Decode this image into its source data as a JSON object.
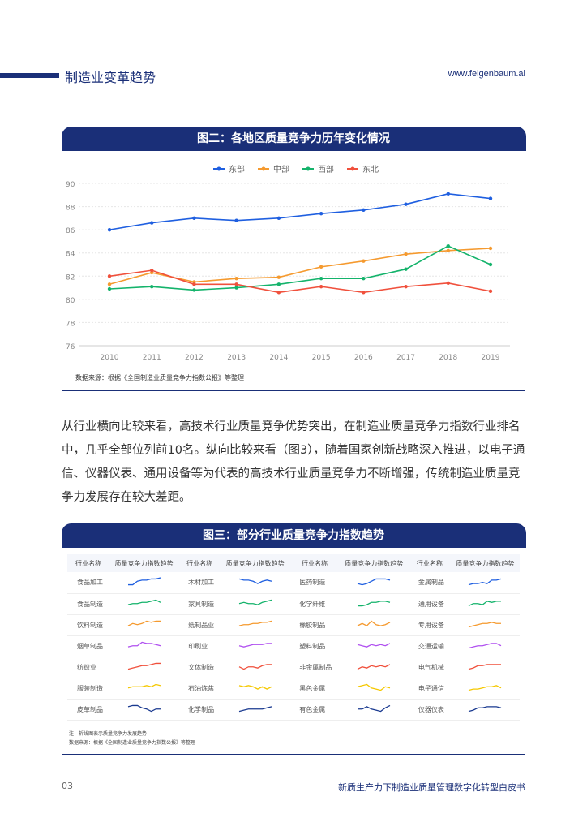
{
  "header": {
    "title": "制造业变革趋势",
    "url": "www.feigenbaum.ai"
  },
  "figure2": {
    "title": "图二：各地区质量竞争力历年变化情况",
    "source": "数据来源：根据《全国制造业质量竞争力指数公报》等整理"
  },
  "chart_data": {
    "type": "line",
    "title": "图二：各地区质量竞争力历年变化情况",
    "x": [
      "2010",
      "2011",
      "2012",
      "2013",
      "2014",
      "2015",
      "2016",
      "2017",
      "2018",
      "2019"
    ],
    "yticks": [
      "76",
      "78",
      "80",
      "82",
      "84",
      "86",
      "88",
      "90"
    ],
    "ylim": [
      76,
      90
    ],
    "grid": true,
    "legend": "top",
    "series": [
      {
        "name": "东部",
        "color": "#1f5fe0",
        "values": [
          86.0,
          86.6,
          87.0,
          86.8,
          87.0,
          87.4,
          87.7,
          88.2,
          89.1,
          88.7
        ]
      },
      {
        "name": "中部",
        "color": "#f59a2f",
        "values": [
          81.3,
          82.3,
          81.5,
          81.8,
          81.9,
          82.8,
          83.3,
          83.9,
          84.2,
          84.4
        ]
      },
      {
        "name": "西部",
        "color": "#14b36b",
        "values": [
          80.9,
          81.1,
          80.8,
          81.0,
          81.3,
          81.8,
          81.8,
          82.6,
          84.6,
          83.0
        ]
      },
      {
        "name": "东北",
        "color": "#f0503c",
        "values": [
          82.0,
          82.5,
          81.3,
          81.3,
          80.6,
          81.1,
          80.6,
          81.1,
          81.4,
          80.7
        ]
      }
    ]
  },
  "paragraph": "从行业横向比较来看，高技术行业质量竞争优势突出，在制造业质量竞争力指数行业排名中，几乎全部位列前10名。纵向比较来看（图3），随着国家创新战略深入推进，以电子通信、仪器仪表、通用设备等为代表的高技术行业质量竞争力不断增强，传统制造业质量竞争力发展存在较大差距。",
  "figure3": {
    "title": "图三：部分行业质量竞争力指数趋势",
    "col_name": "行业名称",
    "col_trend": "质量竞争力指数趋势",
    "row_colors": [
      "#1f5fe0",
      "#14b36b",
      "#f59a2f",
      "#b050f0",
      "#f0503c",
      "#f5c800",
      "#1a3a90"
    ],
    "columns": [
      [
        {
          "name": "食品加工",
          "trend": [
            1,
            1,
            4,
            5,
            5,
            6,
            6,
            7
          ]
        },
        {
          "name": "食品制造",
          "trend": [
            2,
            3,
            3,
            4,
            4,
            5,
            6,
            4
          ]
        },
        {
          "name": "饮料制造",
          "trend": [
            2,
            4,
            3,
            4,
            6,
            5,
            6,
            6
          ]
        },
        {
          "name": "烟草制品",
          "trend": [
            2,
            3,
            3,
            6,
            5,
            5,
            4,
            3
          ]
        },
        {
          "name": "纺织业",
          "trend": [
            1,
            2,
            3,
            4,
            4,
            5,
            6,
            6
          ]
        },
        {
          "name": "服装制造",
          "trend": [
            3,
            4,
            4,
            4,
            5,
            4,
            6,
            5
          ]
        },
        {
          "name": "皮革制品",
          "trend": [
            5,
            6,
            6,
            4,
            3,
            1,
            3,
            3
          ]
        }
      ],
      [
        {
          "name": "木材加工",
          "trend": [
            6,
            5,
            5,
            4,
            2,
            4,
            5,
            4
          ]
        },
        {
          "name": "家具制造",
          "trend": [
            3,
            4,
            3,
            3,
            2,
            4,
            5,
            6
          ]
        },
        {
          "name": "纸制品业",
          "trend": [
            2,
            3,
            3,
            4,
            4,
            5,
            5,
            6
          ]
        },
        {
          "name": "印刷业",
          "trend": [
            3,
            2,
            3,
            4,
            4,
            4,
            5,
            5
          ]
        },
        {
          "name": "文体制造",
          "trend": [
            3,
            1,
            3,
            3,
            2,
            4,
            5,
            5
          ]
        },
        {
          "name": "石油炼焦",
          "trend": [
            5,
            4,
            5,
            4,
            2,
            4,
            2,
            4
          ]
        },
        {
          "name": "化学制品",
          "trend": [
            1,
            2,
            3,
            3,
            3,
            3,
            4,
            5
          ]
        }
      ],
      [
        {
          "name": "医药制造",
          "trend": [
            2,
            1,
            2,
            4,
            6,
            6,
            6,
            5
          ]
        },
        {
          "name": "化学纤维",
          "trend": [
            1,
            1,
            2,
            4,
            4,
            5,
            5,
            4
          ]
        },
        {
          "name": "橡胶制品",
          "trend": [
            2,
            4,
            2,
            6,
            3,
            2,
            3,
            5
          ]
        },
        {
          "name": "塑料制品",
          "trend": [
            4,
            3,
            2,
            4,
            3,
            4,
            3,
            5
          ]
        },
        {
          "name": "非金属制品",
          "trend": [
            1,
            3,
            2,
            4,
            3,
            4,
            3,
            5
          ]
        },
        {
          "name": "黑色金属",
          "trend": [
            4,
            5,
            6,
            3,
            2,
            1,
            4,
            3
          ]
        },
        {
          "name": "有色金属",
          "trend": [
            3,
            3,
            5,
            3,
            2,
            1,
            4,
            6
          ]
        }
      ],
      [
        {
          "name": "金属制品",
          "trend": [
            1,
            2,
            2,
            3,
            2,
            5,
            5,
            6
          ]
        },
        {
          "name": "通用设备",
          "trend": [
            1,
            3,
            3,
            2,
            5,
            4,
            5,
            5
          ]
        },
        {
          "name": "专用设备",
          "trend": [
            1,
            2,
            3,
            4,
            4,
            5,
            4,
            4
          ]
        },
        {
          "name": "交通运输",
          "trend": [
            1,
            2,
            3,
            3,
            4,
            5,
            5,
            3
          ]
        },
        {
          "name": "电气机械",
          "trend": [
            1,
            2,
            4,
            4,
            5,
            5,
            5,
            5
          ]
        },
        {
          "name": "电子通信",
          "trend": [
            1,
            2,
            2,
            3,
            4,
            4,
            5,
            3
          ]
        },
        {
          "name": "仪器仪表",
          "trend": [
            1,
            2,
            4,
            4,
            5,
            5,
            5,
            4
          ]
        }
      ]
    ],
    "note": "注：折线图表示质量竞争力发展趋势",
    "source": "数据来源：根据《全国制造业质量竞争力指数公报》等整理"
  },
  "footer": {
    "page": "03",
    "title": "新质生产力下制造业质量管理数字化转型白皮书"
  }
}
